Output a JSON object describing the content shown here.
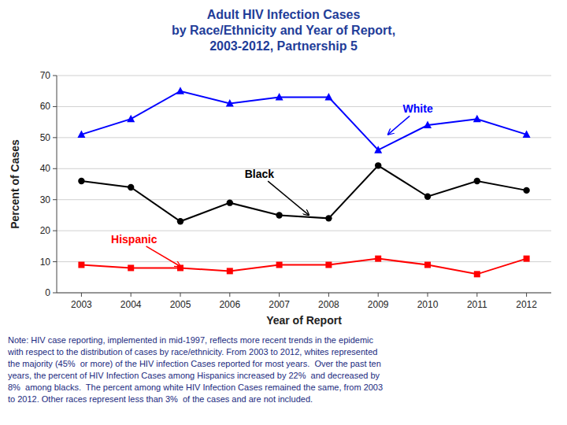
{
  "chart_data": {
    "type": "line",
    "title": "Adult HIV Infection Cases\nby Race/Ethnicity and Year of Report,\n2003-2012, Partnership 5",
    "x_label": "Year of Report",
    "y_label": "Percent of Cases",
    "x": [
      2003,
      2004,
      2005,
      2006,
      2007,
      2008,
      2009,
      2010,
      2011,
      2012
    ],
    "series": [
      {
        "color": "#0000FF",
        "marker": "triangle",
        "values": [
          51,
          56,
          65,
          61,
          63,
          63,
          46,
          54,
          56,
          51
        ]
      },
      {
        "color": "#000000",
        "marker": "circle",
        "values": [
          36,
          34,
          23,
          29,
          25,
          24,
          41,
          31,
          36,
          33
        ]
      },
      {
        "color": "#FF0000",
        "marker": "square",
        "values": [
          9,
          8,
          8,
          7,
          9,
          9,
          11,
          9,
          6,
          11
        ]
      }
    ],
    "xlim": [
      2002.5,
      2012.5
    ],
    "xticks": [
      2003,
      2004,
      2005,
      2006,
      2007,
      2008,
      2009,
      2010,
      2011,
      2012
    ],
    "ylim": [
      0,
      70
    ],
    "yticks": [
      0,
      10,
      20,
      30,
      40,
      50,
      60,
      70
    ],
    "grid": true,
    "annotations": [
      {
        "text": "White",
        "color": "#0000FF",
        "x": 2009.5,
        "y": 58,
        "arrow_x": 2009.2,
        "arrow_y": 51
      },
      {
        "text": "Black",
        "color": "#000000",
        "x": 2006.3,
        "y": 37,
        "arrow_x": 2007.6,
        "arrow_y": 25
      },
      {
        "text": "Hispanic",
        "color": "#FF0000",
        "x": 2003.6,
        "y": 16,
        "arrow_x": 2005.0,
        "arrow_y": 8.5
      }
    ],
    "note": "Note: HIV case reporting, implemented in mid-1997, reflects more recent trends in the epidemic\nwith respect to the distribution of cases by race/ethnicity. From 2003 to 2012, whites represented\nthe majority (45%  or more) of the HIV infection Cases reported for most years.  Over the past ten\nyears, the percent of HIV Infection Cases among Hispanics increased by 22%  and decreased by\n8%  among blacks.  The percent among white HIV Infection Cases remained the same, from 2003\nto 2012. Other races represent less than 3%  of the cases and are not included."
  }
}
